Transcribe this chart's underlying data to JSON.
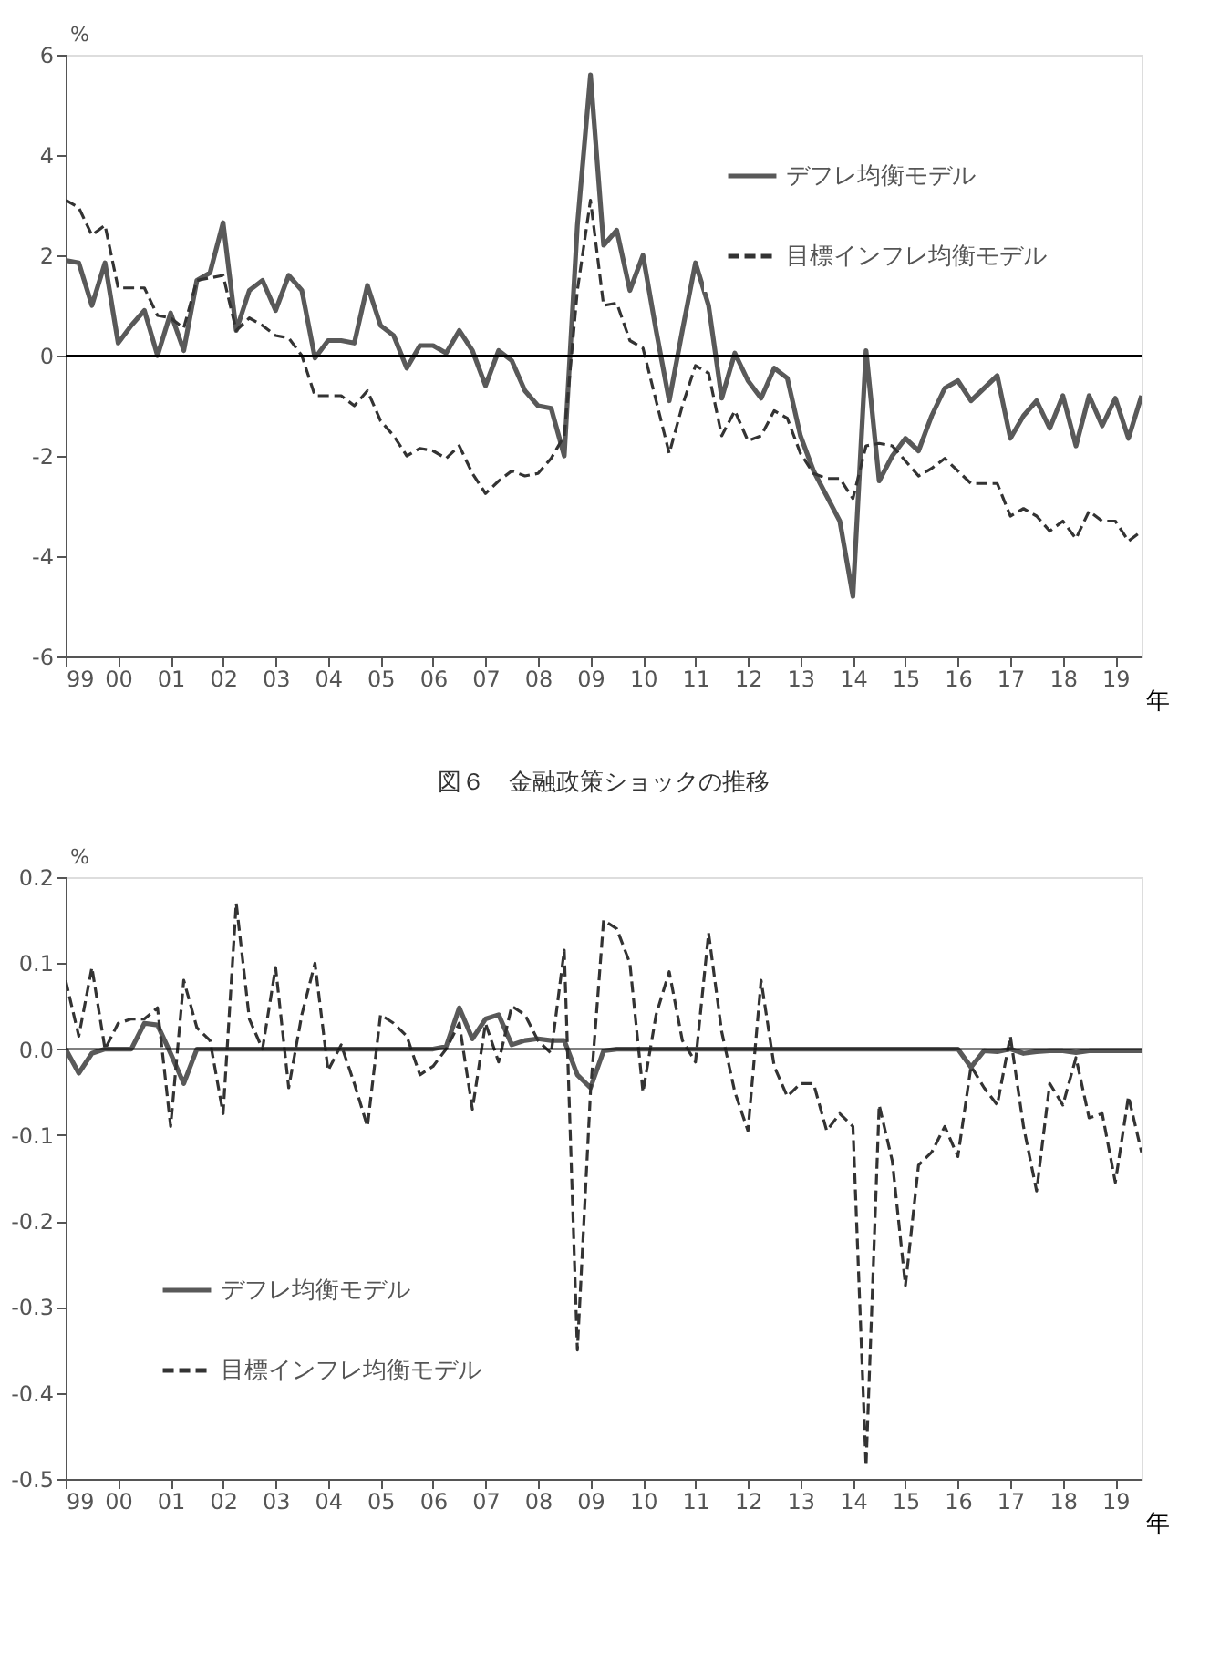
{
  "chart_data": [
    {
      "type": "line",
      "ylabel": "%",
      "xlabel": "年",
      "legend": "top right",
      "grid": false,
      "marker": "none",
      "x": [
        1999,
        1999.25,
        1999.5,
        1999.75,
        2000,
        2000.25,
        2000.5,
        2000.75,
        2001,
        2001.25,
        2001.5,
        2001.75,
        2002,
        2002.25,
        2002.5,
        2002.75,
        2003,
        2003.25,
        2003.5,
        2003.75,
        2004,
        2004.25,
        2004.5,
        2004.75,
        2005,
        2005.25,
        2005.5,
        2005.75,
        2006,
        2006.25,
        2006.5,
        2006.75,
        2007,
        2007.25,
        2007.5,
        2007.75,
        2008,
        2008.25,
        2008.5,
        2008.75,
        2009,
        2009.25,
        2009.5,
        2009.75,
        2010,
        2010.25,
        2010.5,
        2010.75,
        2011,
        2011.25,
        2011.5,
        2011.75,
        2012,
        2012.25,
        2012.5,
        2012.75,
        2013,
        2013.25,
        2013.5,
        2013.75,
        2014,
        2014.25,
        2014.5,
        2014.75,
        2015,
        2015.25,
        2015.5,
        2015.75,
        2016,
        2016.25,
        2016.5,
        2016.75,
        2017,
        2017.25,
        2017.5,
        2017.75,
        2018,
        2018.25,
        2018.5,
        2018.75,
        2019,
        2019.25,
        2019.5
      ],
      "series": [
        {
          "name": "デフレ均衡モデル",
          "color": "#595959",
          "line_style": "solid",
          "values": [
            1.9,
            1.85,
            1.0,
            1.85,
            0.25,
            0.6,
            0.9,
            0.0,
            0.85,
            0.1,
            1.5,
            1.65,
            2.65,
            0.5,
            1.3,
            1.5,
            0.9,
            1.6,
            1.3,
            -0.05,
            0.3,
            0.3,
            0.25,
            1.4,
            0.6,
            0.4,
            -0.25,
            0.2,
            0.2,
            0.05,
            0.5,
            0.1,
            -0.6,
            0.1,
            -0.1,
            -0.7,
            -1.0,
            -1.05,
            -2.0,
            2.6,
            5.6,
            2.2,
            2.5,
            1.3,
            2.0,
            0.5,
            -0.9,
            0.5,
            1.85,
            1.0,
            -0.85,
            0.05,
            -0.5,
            -0.85,
            -0.25,
            -0.45,
            -1.6,
            -2.3,
            -2.8,
            -3.3,
            -4.8,
            0.1,
            -2.5,
            -2.0,
            -1.65,
            -1.9,
            -1.2,
            -0.65,
            -0.5,
            -0.9,
            -0.65,
            -0.4,
            -1.65,
            -1.2,
            -0.9,
            -1.45,
            -0.8,
            -1.8,
            -0.8,
            -1.4,
            -0.85,
            -1.65,
            -0.8
          ]
        },
        {
          "name": "目標インフレ均衡モデル",
          "color": "#333333",
          "line_style": "dashed",
          "values": [
            3.1,
            2.95,
            2.4,
            2.6,
            1.35,
            1.35,
            1.35,
            0.8,
            0.75,
            0.55,
            1.5,
            1.55,
            1.6,
            0.5,
            0.75,
            0.6,
            0.4,
            0.35,
            0.0,
            -0.8,
            -0.8,
            -0.8,
            -1.0,
            -0.7,
            -1.3,
            -1.6,
            -2.0,
            -1.85,
            -1.9,
            -2.05,
            -1.8,
            -2.35,
            -2.75,
            -2.5,
            -2.3,
            -2.4,
            -2.35,
            -2.05,
            -1.6,
            1.3,
            3.1,
            1.0,
            1.05,
            0.3,
            0.15,
            -0.9,
            -1.95,
            -1.0,
            -0.2,
            -0.35,
            -1.6,
            -1.1,
            -1.7,
            -1.6,
            -1.1,
            -1.25,
            -1.95,
            -2.35,
            -2.45,
            -2.45,
            -2.85,
            -1.8,
            -1.75,
            -1.8,
            -2.1,
            -2.4,
            -2.25,
            -2.05,
            -2.3,
            -2.55,
            -2.55,
            -2.55,
            -3.2,
            -3.05,
            -3.2,
            -3.5,
            -3.3,
            -3.65,
            -3.1,
            -3.3,
            -3.3,
            -3.7,
            -3.5
          ]
        }
      ],
      "xlim": [
        1999,
        2019.5
      ],
      "xticks": [
        {
          "value": 1999,
          "label": "99"
        },
        {
          "value": 2000,
          "label": "00"
        },
        {
          "value": 2001,
          "label": "01"
        },
        {
          "value": 2002,
          "label": "02"
        },
        {
          "value": 2003,
          "label": "03"
        },
        {
          "value": 2004,
          "label": "04"
        },
        {
          "value": 2005,
          "label": "05"
        },
        {
          "value": 2006,
          "label": "06"
        },
        {
          "value": 2007,
          "label": "07"
        },
        {
          "value": 2008,
          "label": "08"
        },
        {
          "value": 2009,
          "label": "09"
        },
        {
          "value": 2010,
          "label": "10"
        },
        {
          "value": 2011,
          "label": "11"
        },
        {
          "value": 2012,
          "label": "12"
        },
        {
          "value": 2013,
          "label": "13"
        },
        {
          "value": 2014,
          "label": "14"
        },
        {
          "value": 2015,
          "label": "15"
        },
        {
          "value": 2016,
          "label": "16"
        },
        {
          "value": 2017,
          "label": "17"
        },
        {
          "value": 2018,
          "label": "18"
        },
        {
          "value": 2019,
          "label": "19"
        }
      ],
      "ylim": [
        -6,
        6
      ],
      "yticks": [
        -6,
        -4,
        -2,
        0,
        2,
        4,
        6
      ],
      "ref_lines": [
        {
          "axis": "y",
          "value": 0,
          "color": "#000000"
        }
      ]
    },
    {
      "type": "line",
      "title": "図６　金融政策ショックの推移",
      "ylabel": "%",
      "xlabel": "年",
      "legend": "bottom left",
      "grid": false,
      "marker": "none",
      "x": [
        1999,
        1999.25,
        1999.5,
        1999.75,
        2000,
        2000.25,
        2000.5,
        2000.75,
        2001,
        2001.25,
        2001.5,
        2001.75,
        2002,
        2002.25,
        2002.5,
        2002.75,
        2003,
        2003.25,
        2003.5,
        2003.75,
        2004,
        2004.25,
        2004.5,
        2004.75,
        2005,
        2005.25,
        2005.5,
        2005.75,
        2006,
        2006.25,
        2006.5,
        2006.75,
        2007,
        2007.25,
        2007.5,
        2007.75,
        2008,
        2008.25,
        2008.5,
        2008.75,
        2009,
        2009.25,
        2009.5,
        2009.75,
        2010,
        2010.25,
        2010.5,
        2010.75,
        2011,
        2011.25,
        2011.5,
        2011.75,
        2012,
        2012.25,
        2012.5,
        2012.75,
        2013,
        2013.25,
        2013.5,
        2013.75,
        2014,
        2014.25,
        2014.5,
        2014.75,
        2015,
        2015.25,
        2015.5,
        2015.75,
        2016,
        2016.25,
        2016.5,
        2016.75,
        2017,
        2017.25,
        2017.5,
        2017.75,
        2018,
        2018.25,
        2018.5,
        2018.75,
        2019,
        2019.25,
        2019.5
      ],
      "series": [
        {
          "name": "デフレ均衡モデル",
          "color": "#595959",
          "line_style": "solid",
          "values": [
            0.0,
            -0.028,
            -0.005,
            0.0,
            0.0,
            0.0,
            0.03,
            0.028,
            -0.005,
            -0.04,
            0.0,
            0.0,
            0.0,
            0.0,
            0.0,
            0.0,
            0.0,
            0.0,
            0.0,
            0.0,
            0.0,
            0.0,
            0.0,
            0.0,
            0.0,
            0.0,
            0.0,
            0.0,
            0.0,
            0.003,
            0.048,
            0.012,
            0.035,
            0.04,
            0.005,
            0.01,
            0.012,
            0.01,
            0.01,
            -0.03,
            -0.045,
            -0.002,
            0.0,
            0.0,
            0.0,
            0.0,
            0.0,
            0.0,
            0.0,
            0.0,
            0.0,
            0.0,
            0.0,
            0.0,
            0.0,
            0.0,
            0.0,
            0.0,
            0.0,
            0.0,
            0.0,
            0.0,
            0.0,
            0.0,
            0.0,
            0.0,
            0.0,
            0.0,
            0.0,
            -0.021,
            -0.002,
            -0.003,
            0.0,
            -0.005,
            -0.003,
            -0.002,
            -0.002,
            -0.004,
            -0.002,
            -0.002,
            -0.002,
            -0.002,
            -0.002
          ]
        },
        {
          "name": "目標インフレ均衡モデル",
          "color": "#333333",
          "line_style": "dashed",
          "values": [
            0.08,
            0.015,
            0.095,
            0.0,
            0.03,
            0.035,
            0.035,
            0.048,
            -0.09,
            0.08,
            0.025,
            0.01,
            -0.075,
            0.17,
            0.035,
            0.0,
            0.095,
            -0.045,
            0.04,
            0.1,
            -0.025,
            0.005,
            -0.04,
            -0.09,
            0.04,
            0.03,
            0.015,
            -0.03,
            -0.02,
            0.0,
            0.03,
            -0.07,
            0.03,
            -0.015,
            0.05,
            0.04,
            0.01,
            -0.005,
            0.115,
            -0.35,
            -0.05,
            0.15,
            0.14,
            0.1,
            -0.05,
            0.04,
            0.09,
            0.01,
            -0.015,
            0.135,
            0.02,
            -0.05,
            -0.095,
            0.08,
            -0.02,
            -0.055,
            -0.04,
            -0.04,
            -0.095,
            -0.075,
            -0.09,
            -0.485,
            -0.065,
            -0.13,
            -0.275,
            -0.135,
            -0.12,
            -0.09,
            -0.125,
            -0.02,
            -0.045,
            -0.065,
            0.015,
            -0.09,
            -0.165,
            -0.04,
            -0.065,
            -0.01,
            -0.08,
            -0.075,
            -0.155,
            -0.055,
            -0.12
          ]
        }
      ],
      "xlim": [
        1999,
        2019.5
      ],
      "xticks": [
        {
          "value": 1999,
          "label": "99"
        },
        {
          "value": 2000,
          "label": "00"
        },
        {
          "value": 2001,
          "label": "01"
        },
        {
          "value": 2002,
          "label": "02"
        },
        {
          "value": 2003,
          "label": "03"
        },
        {
          "value": 2004,
          "label": "04"
        },
        {
          "value": 2005,
          "label": "05"
        },
        {
          "value": 2006,
          "label": "06"
        },
        {
          "value": 2007,
          "label": "07"
        },
        {
          "value": 2008,
          "label": "08"
        },
        {
          "value": 2009,
          "label": "09"
        },
        {
          "value": 2010,
          "label": "10"
        },
        {
          "value": 2011,
          "label": "11"
        },
        {
          "value": 2012,
          "label": "12"
        },
        {
          "value": 2013,
          "label": "13"
        },
        {
          "value": 2014,
          "label": "14"
        },
        {
          "value": 2015,
          "label": "15"
        },
        {
          "value": 2016,
          "label": "16"
        },
        {
          "value": 2017,
          "label": "17"
        },
        {
          "value": 2018,
          "label": "18"
        },
        {
          "value": 2019,
          "label": "19"
        }
      ],
      "ylim": [
        -0.5,
        0.2
      ],
      "yticks": [
        {
          "value": -0.5,
          "label": "-0.5"
        },
        {
          "value": -0.4,
          "label": "-0.4"
        },
        {
          "value": -0.3,
          "label": "-0.3"
        },
        {
          "value": -0.2,
          "label": "-0.2"
        },
        {
          "value": -0.1,
          "label": "-0.1"
        },
        {
          "value": 0.0,
          "label": "0.0"
        },
        {
          "value": 0.1,
          "label": "0.1"
        },
        {
          "value": 0.2,
          "label": "0.2"
        }
      ],
      "ref_lines": [
        {
          "axis": "y",
          "value": 0,
          "color": "#000000"
        }
      ]
    }
  ]
}
